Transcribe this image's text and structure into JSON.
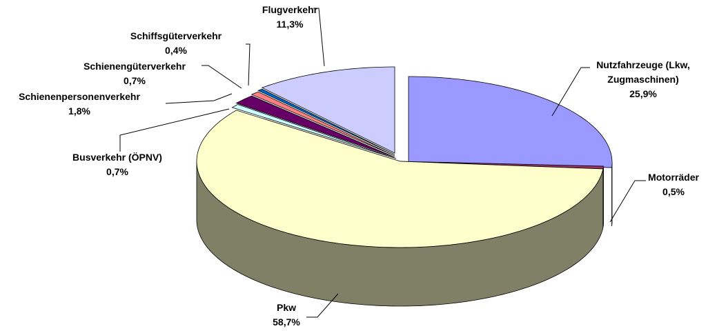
{
  "chart_data": {
    "type": "pie3d",
    "categories": [
      "Nutzfahrzeuge (Lkw, Zugmaschinen)",
      "Motorräder",
      "Pkw",
      "Busverkehr (ÖPNV)",
      "Schienenpersonenverkehr",
      "Schienengüterverkehr",
      "Schiffsgüterverkehr",
      "Flugverkehr"
    ],
    "values": [
      25.9,
      0.5,
      58.7,
      0.7,
      1.8,
      0.7,
      0.4,
      11.3
    ],
    "value_labels": [
      "25,9%",
      "0,5%",
      "58,7%",
      "0,7%",
      "1,8%",
      "0,7%",
      "0,4%",
      "11,3%"
    ],
    "colors": [
      "#9999ff",
      "#993366",
      "#ffffcc",
      "#ccffff",
      "#660066",
      "#ff8080",
      "#0066cc",
      "#ccccff"
    ]
  }
}
